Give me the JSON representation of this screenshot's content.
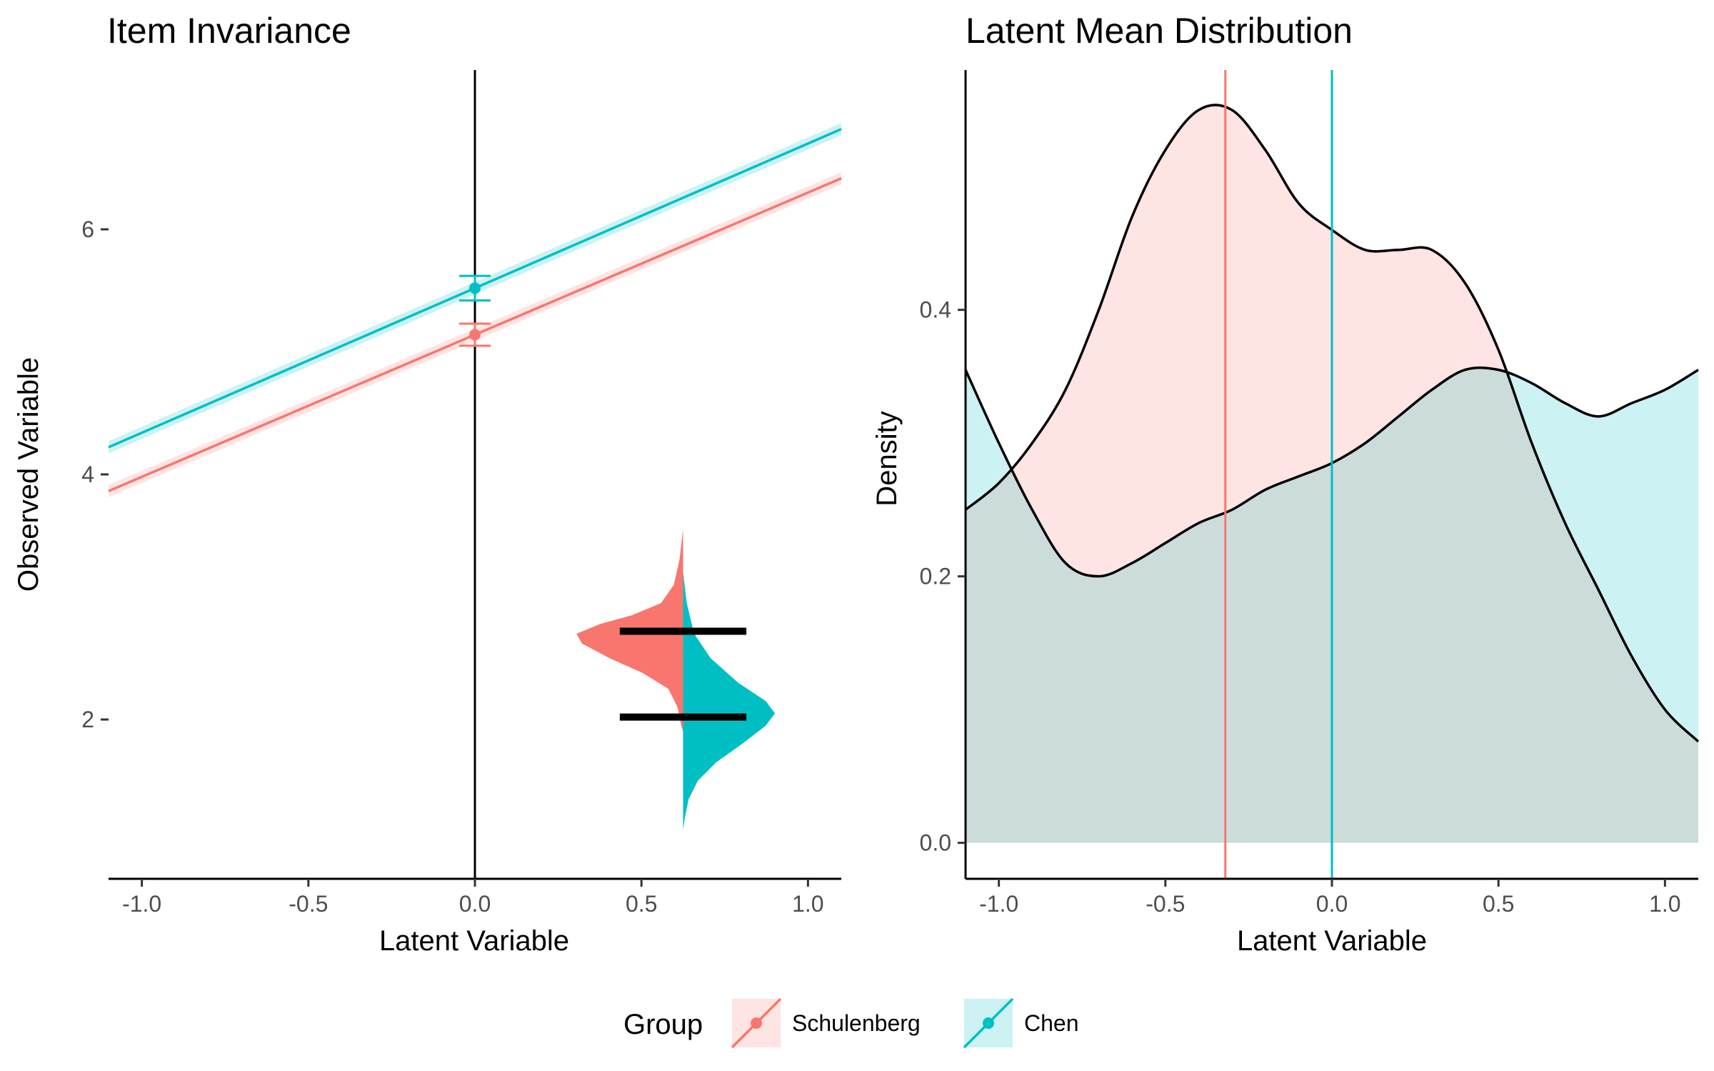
{
  "legend": {
    "title": "Group",
    "entries": [
      {
        "name": "Schulenberg",
        "line_color": "#F8766D",
        "fill_color": "#FADBD8"
      },
      {
        "name": "Chen",
        "line_color": "#00BFC4",
        "fill_color": "#C5EEF0"
      }
    ]
  },
  "chart_data": [
    {
      "type": "line",
      "title": "Item Invariance",
      "xlabel": "Latent Variable",
      "ylabel": "Observed Variable",
      "xlim": [
        -1.1,
        1.1
      ],
      "ylim": [
        0.7,
        7.3
      ],
      "xticks": [
        -1.0,
        -0.5,
        0.0,
        0.5,
        1.0
      ],
      "xtick_labels": [
        "-1.0",
        "-0.5",
        "0.0",
        "0.5",
        "1.0"
      ],
      "yticks": [
        2,
        4,
        6
      ],
      "ytick_labels": [
        "2",
        "4",
        "6"
      ],
      "grid": false,
      "vline_x": 0,
      "series": [
        {
          "name": "Schulenberg",
          "color": "#F8766D",
          "intercept": 5.14,
          "slope": 1.16,
          "ribbon": 0.05,
          "point": {
            "x": 0,
            "y": 5.14
          },
          "error_bar": [
            5.05,
            5.23
          ]
        },
        {
          "name": "Chen",
          "color": "#00BFC4",
          "intercept": 5.52,
          "slope": 1.18,
          "ribbon": 0.05,
          "point": {
            "x": 0,
            "y": 5.52
          },
          "error_bar": [
            5.42,
            5.62
          ]
        }
      ],
      "violin": {
        "x_center": 0.625,
        "max_half_width": 0.32,
        "halves": [
          {
            "name": "Schulenberg",
            "side": "left",
            "color": "#F8766D",
            "profile": [
              [
                3.55,
                0.0
              ],
              [
                3.3,
                0.02
              ],
              [
                3.1,
                0.05
              ],
              [
                2.95,
                0.12
              ],
              [
                2.85,
                0.28
              ],
              [
                2.78,
                0.45
              ],
              [
                2.7,
                0.58
              ],
              [
                2.62,
                0.55
              ],
              [
                2.5,
                0.4
              ],
              [
                2.38,
                0.22
              ],
              [
                2.25,
                0.08
              ],
              [
                2.1,
                0.03
              ],
              [
                1.95,
                0.01
              ],
              [
                1.9,
                0.0
              ]
            ],
            "mean": 2.72
          },
          {
            "name": "Chen",
            "side": "right",
            "color": "#00BFC4",
            "profile": [
              [
                3.2,
                0.0
              ],
              [
                2.95,
                0.02
              ],
              [
                2.7,
                0.06
              ],
              [
                2.5,
                0.15
              ],
              [
                2.3,
                0.3
              ],
              [
                2.15,
                0.45
              ],
              [
                2.05,
                0.5
              ],
              [
                1.95,
                0.45
              ],
              [
                1.8,
                0.32
              ],
              [
                1.65,
                0.18
              ],
              [
                1.5,
                0.08
              ],
              [
                1.35,
                0.03
              ],
              [
                1.2,
                0.01
              ],
              [
                1.1,
                0.0
              ]
            ],
            "mean": 2.02
          }
        ],
        "mean_segment_half_length": 0.19
      }
    },
    {
      "type": "area",
      "title": "Latent Mean Distribution",
      "xlabel": "Latent Variable",
      "ylabel": "Density",
      "xlim": [
        -1.1,
        1.1
      ],
      "ylim": [
        -0.027,
        0.58
      ],
      "xticks": [
        -1.0,
        -0.5,
        0.0,
        0.5,
        1.0
      ],
      "xtick_labels": [
        "-1.0",
        "-0.5",
        "0.0",
        "0.5",
        "1.0"
      ],
      "yticks": [
        0.0,
        0.2,
        0.4
      ],
      "ytick_labels": [
        "0.0",
        "0.2",
        "0.4"
      ],
      "grid": false,
      "x": [
        -1.1,
        -1.0,
        -0.9,
        -0.8,
        -0.7,
        -0.6,
        -0.5,
        -0.4,
        -0.3,
        -0.2,
        -0.1,
        0.0,
        0.1,
        0.2,
        0.3,
        0.4,
        0.5,
        0.6,
        0.7,
        0.8,
        0.9,
        1.0,
        1.1
      ],
      "series": [
        {
          "name": "Schulenberg",
          "color": "#F8766D",
          "fill": "#F8766D",
          "fill_opacity": 0.2,
          "values": [
            0.25,
            0.27,
            0.3,
            0.34,
            0.4,
            0.47,
            0.52,
            0.55,
            0.55,
            0.52,
            0.48,
            0.46,
            0.445,
            0.445,
            0.445,
            0.42,
            0.37,
            0.3,
            0.24,
            0.19,
            0.14,
            0.1,
            0.076
          ],
          "mean_line": -0.32
        },
        {
          "name": "Chen",
          "color": "#00BFC4",
          "fill": "#00BFC4",
          "fill_opacity": 0.2,
          "values": [
            0.355,
            0.3,
            0.25,
            0.21,
            0.2,
            0.21,
            0.225,
            0.24,
            0.25,
            0.265,
            0.275,
            0.285,
            0.3,
            0.32,
            0.34,
            0.355,
            0.355,
            0.345,
            0.33,
            0.32,
            0.33,
            0.34,
            0.355
          ],
          "mean_line": 0.0
        }
      ]
    }
  ]
}
